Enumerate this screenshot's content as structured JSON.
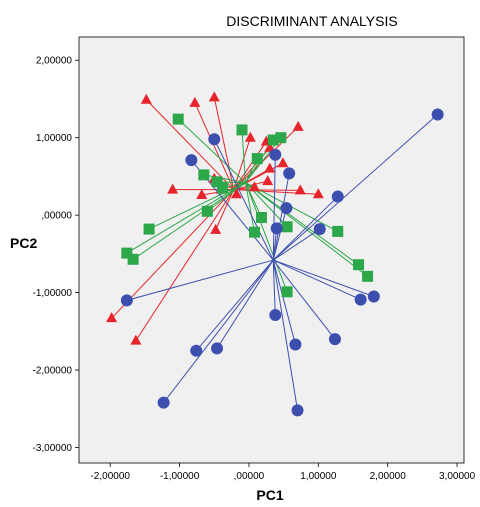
{
  "chart_data": {
    "type": "scatter",
    "title": "DISCRIMINANT ANALYSIS",
    "xlabel": "PC1",
    "ylabel": "PC2",
    "xlim": [
      -2.45,
      3.1
    ],
    "ylim": [
      -3.2,
      2.3
    ],
    "xticks": [
      -2,
      -1,
      0,
      1,
      2,
      3
    ],
    "yticks": [
      2,
      1,
      0,
      -1,
      -2,
      -3
    ],
    "xtick_labels": [
      "-2,00000",
      "-1,00000",
      ",00000",
      "1,00000",
      "2,00000",
      "3,00000"
    ],
    "ytick_labels": [
      "2,00000",
      "1,00000",
      ",00000",
      "-1,00000",
      "-2,00000",
      "-3,00000"
    ],
    "grid": false,
    "legend": "none",
    "background": "#f0f0f0",
    "series": [
      {
        "marker": "triangle",
        "color": "#e8232b",
        "centroid": [
          -0.22,
          0.33
        ],
        "points": [
          [
            -1.48,
            1.49
          ],
          [
            -0.78,
            1.45
          ],
          [
            -0.5,
            1.52
          ],
          [
            -1.1,
            0.33
          ],
          [
            -0.68,
            0.26
          ],
          [
            -0.5,
            0.47
          ],
          [
            -0.4,
            0.33
          ],
          [
            -0.18,
            0.27
          ],
          [
            -0.48,
            -0.19
          ],
          [
            0.02,
            1.0
          ],
          [
            0.25,
            0.95
          ],
          [
            0.3,
            0.87
          ],
          [
            0.49,
            0.67
          ],
          [
            0.71,
            1.14
          ],
          [
            0.27,
            0.44
          ],
          [
            0.08,
            0.36
          ],
          [
            0.74,
            0.32
          ],
          [
            1.0,
            0.27
          ],
          [
            0.3,
            0.6
          ],
          [
            -1.98,
            -1.33
          ],
          [
            -1.63,
            -1.62
          ]
        ]
      },
      {
        "marker": "square",
        "color": "#2ca84a",
        "centroid": [
          -0.05,
          0.42
        ],
        "points": [
          [
            -1.02,
            1.24
          ],
          [
            -0.1,
            1.1
          ],
          [
            0.35,
            0.97
          ],
          [
            0.46,
            1.0
          ],
          [
            0.12,
            0.73
          ],
          [
            -0.65,
            0.52
          ],
          [
            -0.46,
            0.43
          ],
          [
            -0.38,
            0.35
          ],
          [
            -0.6,
            0.05
          ],
          [
            0.18,
            -0.03
          ],
          [
            0.08,
            -0.22
          ],
          [
            0.55,
            -0.15
          ],
          [
            1.28,
            -0.21
          ],
          [
            -1.44,
            -0.18
          ],
          [
            -1.76,
            -0.49
          ],
          [
            -1.67,
            -0.57
          ],
          [
            1.58,
            -0.64
          ],
          [
            1.71,
            -0.79
          ],
          [
            0.55,
            -0.99
          ]
        ]
      },
      {
        "marker": "circle",
        "color": "#3d4fae",
        "centroid": [
          0.35,
          -0.58
        ],
        "points": [
          [
            -0.5,
            0.98
          ],
          [
            -0.83,
            0.71
          ],
          [
            0.38,
            0.78
          ],
          [
            0.58,
            0.54
          ],
          [
            0.54,
            0.09
          ],
          [
            1.28,
            0.24
          ],
          [
            1.02,
            -0.18
          ],
          [
            0.4,
            -0.17
          ],
          [
            2.72,
            1.3
          ],
          [
            -1.76,
            -1.1
          ],
          [
            1.61,
            -1.09
          ],
          [
            1.8,
            -1.05
          ],
          [
            0.38,
            -1.29
          ],
          [
            1.24,
            -1.6
          ],
          [
            0.67,
            -1.67
          ],
          [
            -0.76,
            -1.75
          ],
          [
            -0.46,
            -1.72
          ],
          [
            -1.23,
            -2.42
          ],
          [
            0.7,
            -2.52
          ]
        ]
      }
    ]
  }
}
